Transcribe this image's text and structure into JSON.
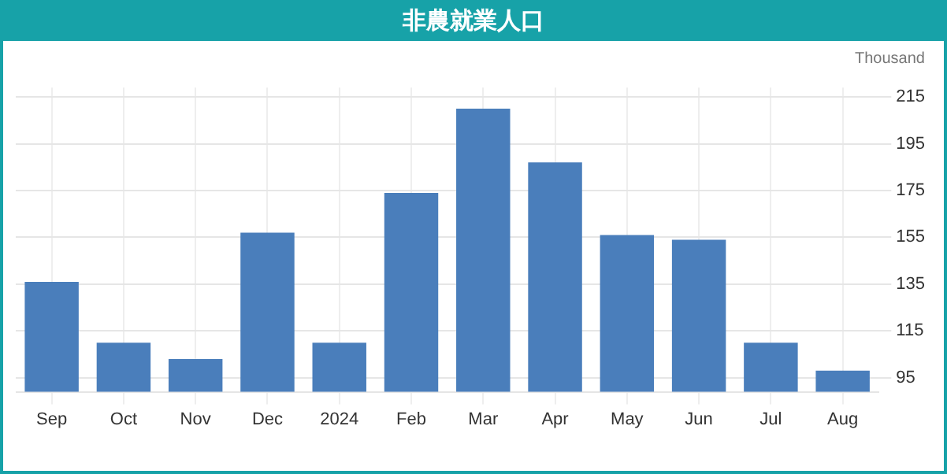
{
  "chart_data": {
    "type": "bar",
    "title": "非農就業人口",
    "ylabel": "Thousand",
    "categories": [
      "Sep",
      "Oct",
      "Nov",
      "Dec",
      "2024",
      "Feb",
      "Mar",
      "Apr",
      "May",
      "Jun",
      "Jul",
      "Aug"
    ],
    "values": [
      136,
      110,
      103,
      157,
      110,
      174,
      210,
      187,
      156,
      154,
      110,
      98
    ],
    "color": "#4a7ebb",
    "ylim": [
      89,
      219
    ],
    "yticks": [
      95,
      115,
      135,
      155,
      175,
      195,
      215
    ],
    "grid": true
  }
}
